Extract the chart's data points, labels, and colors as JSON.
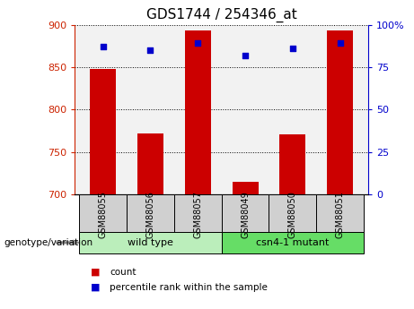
{
  "title": "GDS1744 / 254346_at",
  "categories": [
    "GSM88055",
    "GSM88056",
    "GSM88057",
    "GSM88049",
    "GSM88050",
    "GSM88051"
  ],
  "count_values": [
    848,
    772,
    893,
    715,
    771,
    893
  ],
  "percentile_values": [
    87,
    85,
    89,
    82,
    86,
    89
  ],
  "ylim_left": [
    700,
    900
  ],
  "ylim_right": [
    0,
    100
  ],
  "yticks_left": [
    700,
    750,
    800,
    850,
    900
  ],
  "yticks_right": [
    0,
    25,
    50,
    75,
    100
  ],
  "bar_color": "#cc0000",
  "dot_color": "#0000cc",
  "group1_label": "wild type",
  "group2_label": "csn4-1 mutant",
  "group1_indices": [
    0,
    1,
    2
  ],
  "group2_indices": [
    3,
    4,
    5
  ],
  "group1_color": "#bbeebb",
  "group2_color": "#66dd66",
  "tick_label_color_left": "#cc2200",
  "tick_label_color_right": "#0000cc",
  "legend_count_label": "count",
  "legend_pct_label": "percentile rank within the sample",
  "genotype_label": "genotype/variation",
  "plot_bg_color": "#f2f2f2",
  "grid_color": "#000000",
  "title_fontsize": 11,
  "tick_fontsize": 8,
  "group_label_fontsize": 8,
  "cat_box_color": "#d0d0d0"
}
